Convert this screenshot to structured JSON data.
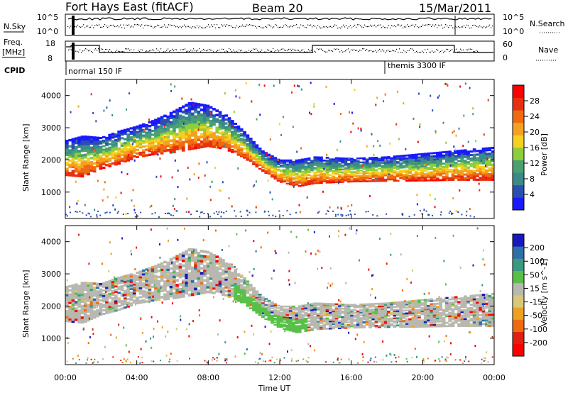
{
  "header": {
    "station": "Fort Hays East (fitACF)",
    "beam": "Beam 20",
    "date": "15/Mar/2011"
  },
  "strips": {
    "nsky_label": "N.Sky",
    "nsky_ticks": [
      "10^5",
      "10^0"
    ],
    "nsearch_label": "N.Search",
    "nsearch_ticks": [
      "10^5",
      "10^0"
    ],
    "freq_label_1": "Freq.",
    "freq_label_2": "[MHz]",
    "freq_ticks": [
      "18",
      "8"
    ],
    "nave_label": "Nave",
    "nave_ticks": [
      "60",
      "0"
    ],
    "cpid_label": "CPID",
    "cpid_modes": [
      {
        "label": "normal 150 IF",
        "start_hour": 0
      },
      {
        "label": "themis 3300 IF",
        "start_hour": 18
      }
    ]
  },
  "axes": {
    "xlabel": "Time UT",
    "x_ticks": [
      "00:00",
      "04:00",
      "08:00",
      "12:00",
      "16:00",
      "20:00",
      "00:00"
    ],
    "ylabel": "Slant Range [km]",
    "y_ticks": [
      "1000",
      "2000",
      "3000",
      "4000"
    ]
  },
  "colors": {
    "power": [
      "#1a1aff",
      "#2a4fb0",
      "#3a8a8a",
      "#4aa070",
      "#8ccf3a",
      "#f5d020",
      "#f5a020",
      "#f06a10",
      "#e83010",
      "#ff0000"
    ],
    "velocity": [
      "#1818c0",
      "#2e6fa8",
      "#3a9a80",
      "#58c048",
      "#b8b8b0",
      "#d8c878",
      "#f0a020",
      "#f06a10",
      "#e02010",
      "#ff0000"
    ]
  },
  "chart_data": [
    {
      "type": "heatmap",
      "panel": "power",
      "x_range_hours": [
        0,
        24
      ],
      "ylim": [
        180,
        4500
      ],
      "colorbar_label": "Power [dB]",
      "colorbar_ticks": [
        "28",
        "24",
        "20",
        "16",
        "12",
        "8",
        "4"
      ],
      "echo_band": {
        "hours": [
          0,
          1,
          2,
          3,
          4,
          5,
          6,
          7,
          8,
          9,
          10,
          11,
          12,
          13,
          14,
          16,
          18,
          20,
          22,
          24
        ],
        "lower_km": [
          1500,
          1450,
          1700,
          1850,
          2050,
          2150,
          2200,
          2300,
          2400,
          2300,
          2050,
          1650,
          1300,
          1150,
          1250,
          1300,
          1320,
          1330,
          1350,
          1350
        ],
        "upper_km": [
          2600,
          2750,
          2700,
          2900,
          3050,
          3250,
          3500,
          3800,
          3700,
          3400,
          2900,
          2300,
          2000,
          2000,
          2100,
          2050,
          2100,
          2200,
          2300,
          2400
        ]
      }
    },
    {
      "type": "heatmap",
      "panel": "velocity",
      "x_range_hours": [
        0,
        24
      ],
      "ylim": [
        180,
        4500
      ],
      "colorbar_label": "Velocity [m s^-1]",
      "colorbar_ticks": [
        "200",
        "100",
        "50",
        "15",
        "-15",
        "-50",
        "-100",
        "-200"
      ],
      "echo_band": {
        "hours": [
          0,
          1,
          2,
          3,
          4,
          5,
          6,
          7,
          8,
          9,
          10,
          11,
          12,
          13,
          14,
          16,
          18,
          20,
          22,
          24
        ],
        "lower_km": [
          1500,
          1450,
          1700,
          1850,
          2050,
          2150,
          2200,
          2300,
          2400,
          2300,
          2050,
          1650,
          1300,
          1150,
          1250,
          1300,
          1320,
          1330,
          1350,
          1350
        ],
        "upper_km": [
          2600,
          2750,
          2700,
          2900,
          3050,
          3250,
          3500,
          3800,
          3700,
          3400,
          2900,
          2300,
          2000,
          2000,
          2100,
          2050,
          2100,
          2200,
          2300,
          2400
        ]
      }
    }
  ]
}
